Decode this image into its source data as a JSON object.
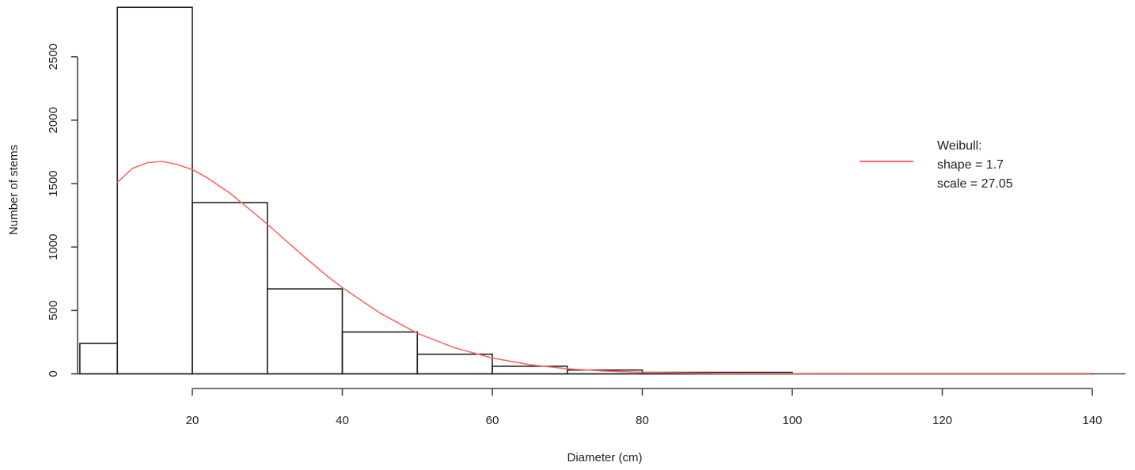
{
  "chart_data": {
    "type": "bar",
    "subtype": "histogram",
    "title": "",
    "xlabel": "Diameter (cm)",
    "ylabel": "Number of stems",
    "xlim": [
      5,
      142
    ],
    "ylim": [
      0,
      2900
    ],
    "x_ticks": [
      20,
      40,
      60,
      80,
      100,
      120,
      140
    ],
    "y_ticks": [
      0,
      500,
      1000,
      1500,
      2000,
      2500
    ],
    "bins": [
      {
        "x0": 5,
        "x1": 10,
        "value": 240
      },
      {
        "x0": 10,
        "x1": 20,
        "value": 2890
      },
      {
        "x0": 20,
        "x1": 30,
        "value": 1350
      },
      {
        "x0": 30,
        "x1": 40,
        "value": 670
      },
      {
        "x0": 40,
        "x1": 50,
        "value": 330
      },
      {
        "x0": 50,
        "x1": 60,
        "value": 155
      },
      {
        "x0": 60,
        "x1": 70,
        "value": 60
      },
      {
        "x0": 70,
        "x1": 80,
        "value": 30
      },
      {
        "x0": 80,
        "x1": 100,
        "value": 12
      },
      {
        "x0": 100,
        "x1": 140,
        "value": 2
      }
    ],
    "fit_curve": {
      "name": "Weibull",
      "color": "#ff6666",
      "x": [
        10,
        12,
        14,
        16,
        18,
        20,
        22,
        25,
        28,
        30,
        32,
        35,
        38,
        40,
        45,
        50,
        55,
        60,
        65,
        70,
        75,
        80,
        90,
        100,
        110,
        120,
        130,
        140
      ],
      "y": [
        1510,
        1620,
        1665,
        1675,
        1650,
        1610,
        1545,
        1425,
        1280,
        1180,
        1075,
        920,
        770,
        680,
        480,
        320,
        205,
        125,
        72,
        40,
        22,
        12,
        3,
        1,
        0,
        0,
        0,
        0
      ]
    },
    "legend": {
      "placement": "top-right",
      "lines": [
        "Weibull:",
        "shape =  1.7",
        "scale =  27.05"
      ]
    },
    "grid": false
  }
}
